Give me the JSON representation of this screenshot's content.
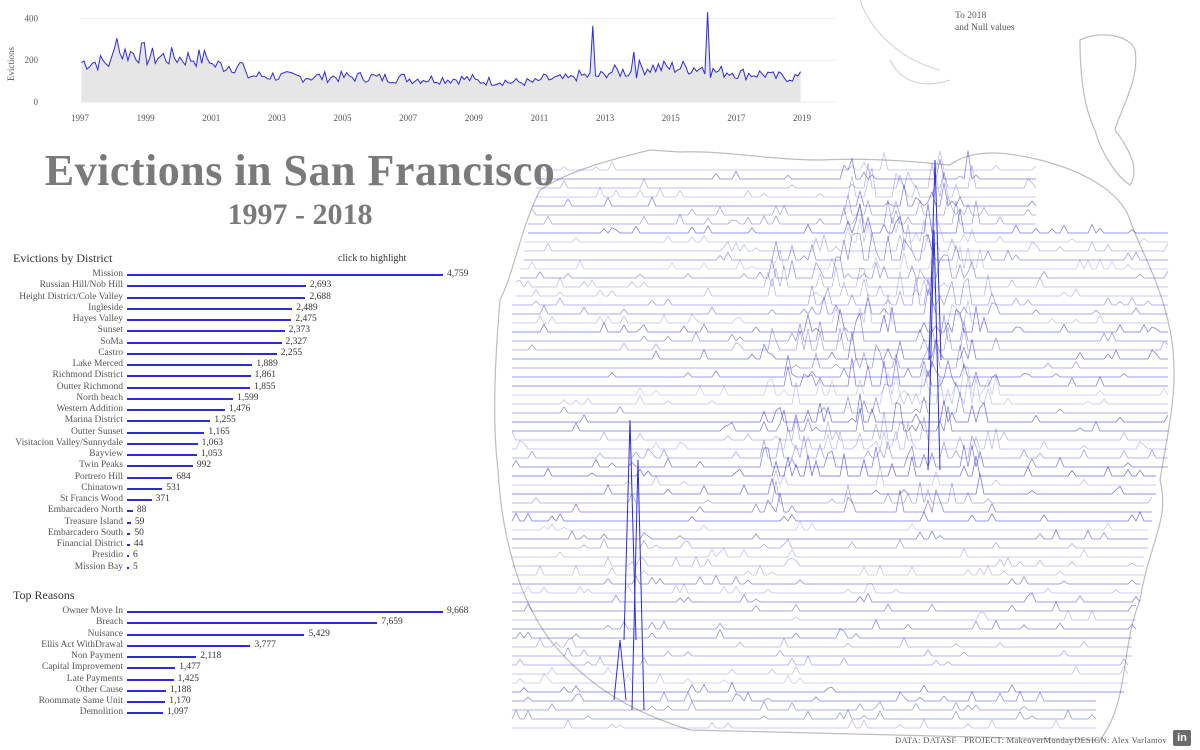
{
  "title": "Evictions in San Francisco",
  "subtitle": "1997 - 2018",
  "note": [
    "To 2018",
    "and Null values"
  ],
  "district_section_title": "Evictions by District",
  "click_hint": "click to highlight",
  "reasons_section_title": "Top Reasons",
  "footer": {
    "data": "DATA: DATASF",
    "project": "PROJECT: MakeoverMonday",
    "design": "DESIGN: Alex Varlamov"
  },
  "logo_text": "in",
  "colors": {
    "accent": "#2b2bd8",
    "area": "#e6e6e6",
    "title": "#7a7a7a"
  },
  "chart_data": [
    {
      "type": "area",
      "ylabel": "Evictions",
      "ylim": [
        0,
        450
      ],
      "y_ticks": [
        "0",
        "200",
        "400"
      ],
      "x_ticks": [
        "1997",
        "1999",
        "2001",
        "2003",
        "2005",
        "2007",
        "2009",
        "2011",
        "2013",
        "2015",
        "2017",
        "2019"
      ],
      "x_start": "1997-01",
      "x_end": "2018-12",
      "x_domain": [
        1997,
        2019
      ],
      "annual_level": [
        {
          "year": 1997,
          "value": 190
        },
        {
          "year": 1998,
          "value": 235
        },
        {
          "year": 1999,
          "value": 215
        },
        {
          "year": 2000,
          "value": 210
        },
        {
          "year": 2001,
          "value": 175
        },
        {
          "year": 2002,
          "value": 125
        },
        {
          "year": 2003,
          "value": 120
        },
        {
          "year": 2004,
          "value": 120
        },
        {
          "year": 2005,
          "value": 120
        },
        {
          "year": 2006,
          "value": 115
        },
        {
          "year": 2007,
          "value": 110
        },
        {
          "year": 2008,
          "value": 110
        },
        {
          "year": 2009,
          "value": 100
        },
        {
          "year": 2010,
          "value": 95
        },
        {
          "year": 2011,
          "value": 110
        },
        {
          "year": 2012,
          "value": 125
        },
        {
          "year": 2013,
          "value": 145
        },
        {
          "year": 2014,
          "value": 165
        },
        {
          "year": 2015,
          "value": 165
        },
        {
          "year": 2016,
          "value": 145
        },
        {
          "year": 2017,
          "value": 135
        },
        {
          "year": 2018,
          "value": 120
        }
      ],
      "spikes": [
        {
          "date": "2012-08",
          "value": 365
        },
        {
          "date": "2013-11",
          "value": 240
        },
        {
          "date": "2016-02",
          "value": 430
        },
        {
          "date": "1998-02",
          "value": 305
        }
      ]
    },
    {
      "type": "bar",
      "title": "Evictions by District",
      "categories": [
        "Mission",
        "Russian Hill/Nob Hill",
        "Height District/Cole Valley",
        "Ingleside",
        "Hayes Valley",
        "Sunset",
        "SoMa",
        "Castro",
        "Lake Merced",
        "Richmond District",
        "Outter Richmond",
        "North beach",
        "Western Addition",
        "Marina District",
        "Outter Sunset",
        "Visitacion Valley/Sunnydale",
        "Bayview",
        "Twin Peaks",
        "Portrero Hill",
        "Chinatown",
        "St Francis Wood",
        "Embarcadero North",
        "Treasure Island",
        "Embarcadero South",
        "Financial District",
        "Presidio",
        "Mission Bay"
      ],
      "values": [
        4759,
        2693,
        2688,
        2489,
        2475,
        2373,
        2327,
        2255,
        1889,
        1861,
        1855,
        1599,
        1476,
        1255,
        1165,
        1063,
        1053,
        992,
        684,
        531,
        371,
        88,
        59,
        50,
        44,
        6,
        5
      ],
      "value_labels": [
        "4,759",
        "2,693",
        "2,688",
        "2,489",
        "2,475",
        "2,373",
        "2,327",
        "2,255",
        "1,889",
        "1,861",
        "1,855",
        "1,599",
        "1,476",
        "1,255",
        "1,165",
        "1,063",
        "1,053",
        "992",
        "684",
        "531",
        "371",
        "88",
        "59",
        "50",
        "44",
        "6",
        "5"
      ]
    },
    {
      "type": "bar",
      "title": "Top Reasons",
      "categories": [
        "Owner Move In",
        "Breach",
        "Nuisance",
        "Ellis Act WithDrawal",
        "Non Payment",
        "Capital Improvement",
        "Late Payments",
        "Other Cause",
        "Roommate Same Unit",
        "Demolition"
      ],
      "values": [
        9668,
        7659,
        5429,
        3777,
        2118,
        1477,
        1425,
        1188,
        1170,
        1097
      ],
      "value_labels": [
        "9,668",
        "7,659",
        "5,429",
        "3,777",
        "2,118",
        "1,477",
        "1,425",
        "1,188",
        "1,170",
        "1,097"
      ]
    }
  ]
}
